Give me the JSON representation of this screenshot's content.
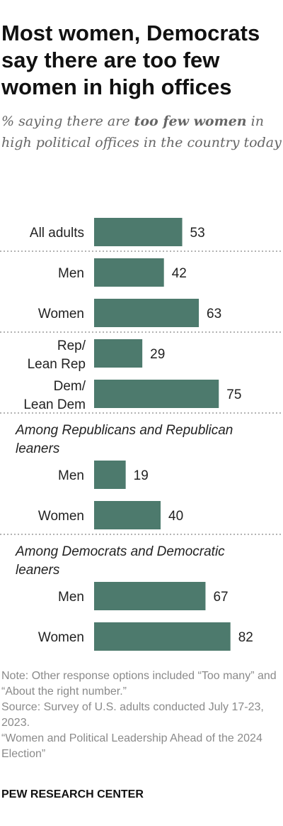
{
  "header": {
    "title": "Most women, Democrats say there are too few women in high offices",
    "subtitle_pre": "% saying there are ",
    "subtitle_bold": "too few women",
    "subtitle_post": " in high political offices in the country today"
  },
  "chart_data": {
    "type": "bar",
    "orientation": "horizontal",
    "title": "Most women, Democrats say there are too few women in high offices",
    "subtitle": "% saying there are too few women in high political offices in the country today",
    "xlim": [
      0,
      100
    ],
    "grid": false,
    "bar_color": "#4d7a6d",
    "section_headers": [
      "Among Republicans and Republican leaners",
      "Among Democrats and Democratic leaners"
    ],
    "categories": [
      "All adults",
      "Men",
      "Women",
      "Rep/ Lean Rep",
      "Dem/ Lean Dem",
      "Men",
      "Women",
      "Men",
      "Women"
    ],
    "values": [
      53,
      42,
      63,
      29,
      75,
      19,
      40,
      67,
      82
    ]
  },
  "footer": {
    "note": "Note: Other response options included “Too many” and “About the right number.”",
    "source": "Source: Survey of U.S. adults conducted July 17-23, 2023.",
    "report": "“Women and Political Leadership Ahead of the 2024 Election”",
    "org": "PEW RESEARCH CENTER"
  }
}
